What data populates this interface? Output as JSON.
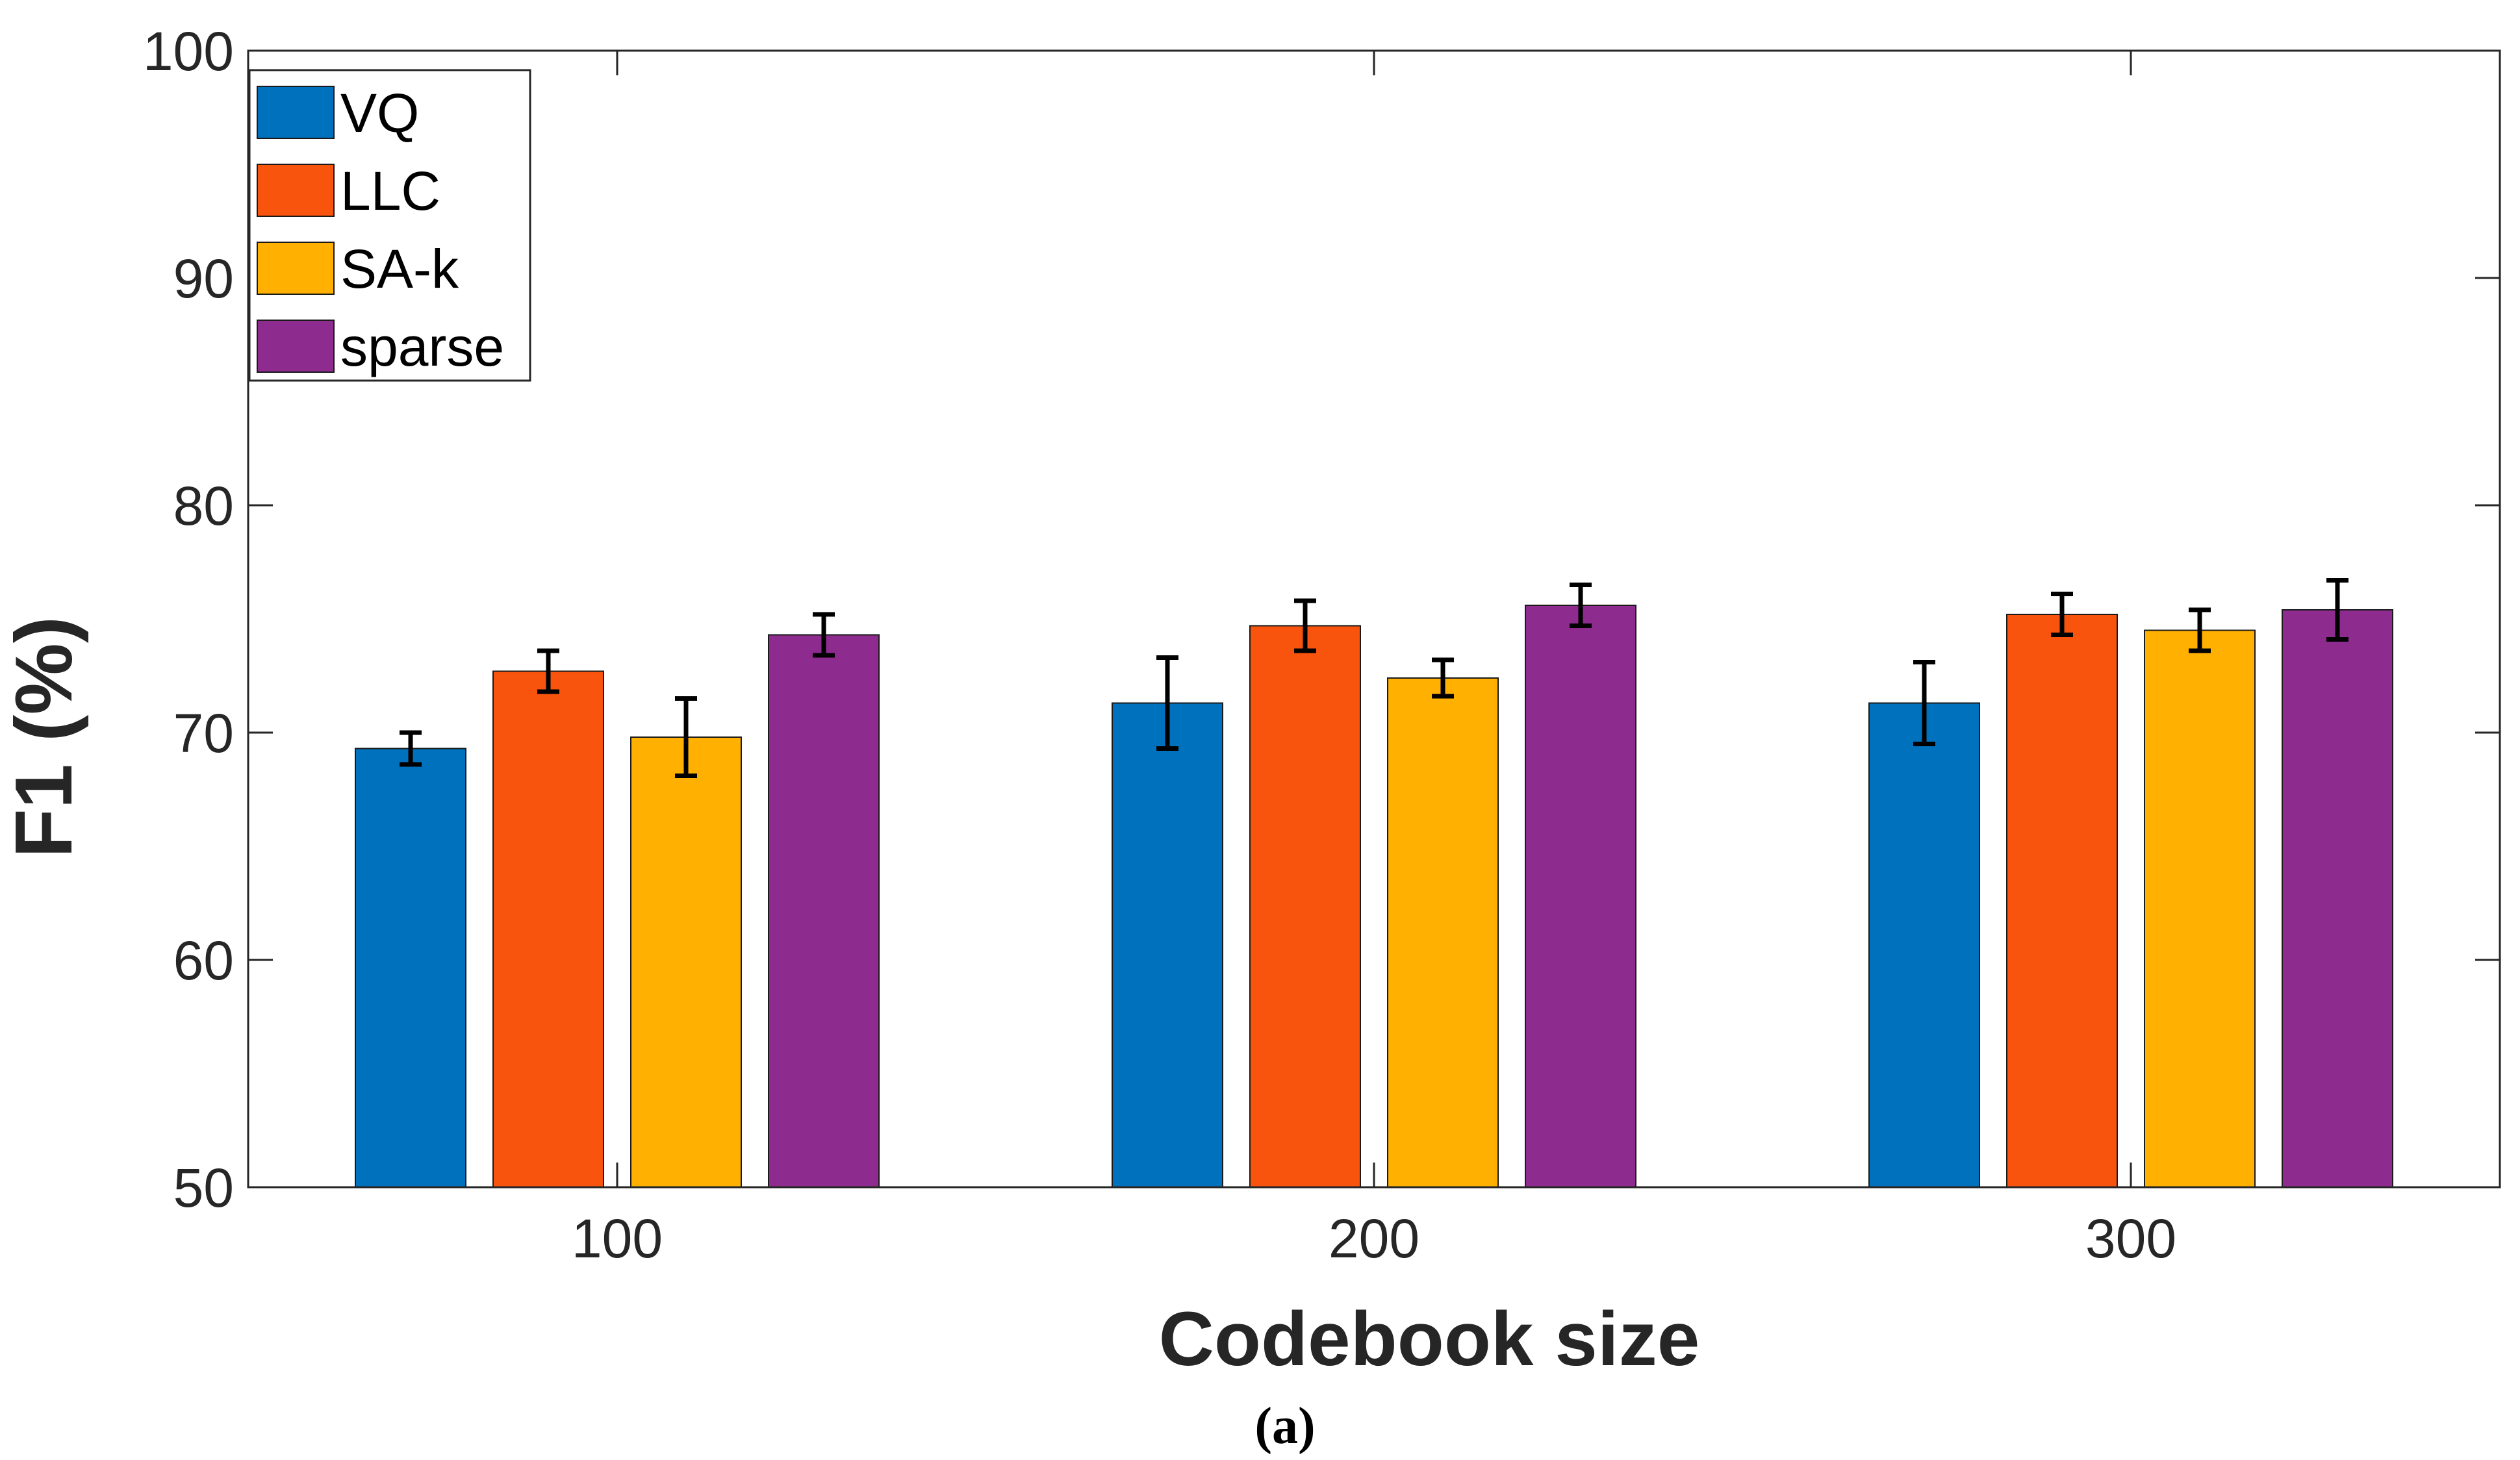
{
  "chart_data": {
    "type": "bar",
    "title": "",
    "xlabel": "Codebook size",
    "ylabel": "F1 (%)",
    "ylim": [
      50,
      100
    ],
    "yticks": [
      50,
      60,
      70,
      80,
      90,
      100
    ],
    "categories": [
      "100",
      "200",
      "300"
    ],
    "series": [
      {
        "name": "VQ",
        "color": "#0072BD",
        "values": [
          69.3,
          71.3,
          71.3
        ],
        "errors": [
          0.7,
          2.0,
          1.8
        ]
      },
      {
        "name": "LLC",
        "color": "#F9540D",
        "values": [
          72.7,
          74.7,
          75.2
        ],
        "errors": [
          0.9,
          1.1,
          0.9
        ]
      },
      {
        "name": "SA-k",
        "color": "#FFB000",
        "values": [
          69.8,
          72.4,
          74.5
        ],
        "errors": [
          1.7,
          0.8,
          0.9
        ]
      },
      {
        "name": "sparse",
        "color": "#8E2B8F",
        "values": [
          74.3,
          75.6,
          75.4
        ],
        "errors": [
          0.9,
          0.9,
          1.3
        ]
      }
    ],
    "grid": false,
    "legend_position": "top-left"
  },
  "caption": "(a)"
}
